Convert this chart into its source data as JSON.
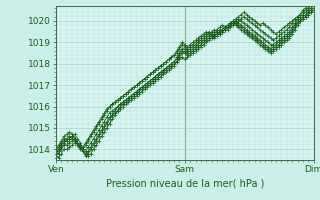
{
  "title": "Pression niveau de la mer( hPa )",
  "bg_color": "#cceee8",
  "plot_bg_color": "#d8f4f0",
  "grid_color_major": "#aacccc",
  "grid_color_minor": "#bbdddd",
  "line_color": "#1a5e1a",
  "tick_label_color": "#1a5e1a",
  "axis_label_color": "#1a5e1a",
  "ylim": [
    1013.5,
    1020.7
  ],
  "yticks": [
    1014,
    1015,
    1016,
    1017,
    1018,
    1019,
    1020
  ],
  "xtick_labels": [
    "Ven",
    "Sam",
    "Dim"
  ],
  "xtick_positions": [
    0,
    48,
    96
  ],
  "total_points": 97,
  "series": [
    [
      1013.7,
      1013.6,
      1013.8,
      1014.0,
      1014.0,
      1014.1,
      1014.2,
      1014.3,
      1014.3,
      1014.2,
      1014.0,
      1013.8,
      1013.7,
      1013.8,
      1014.0,
      1014.2,
      1014.4,
      1014.6,
      1014.8,
      1015.0,
      1015.2,
      1015.4,
      1015.6,
      1015.8,
      1016.0,
      1016.1,
      1016.2,
      1016.3,
      1016.4,
      1016.5,
      1016.6,
      1016.7,
      1016.8,
      1016.9,
      1017.0,
      1017.1,
      1017.2,
      1017.3,
      1017.4,
      1017.5,
      1017.6,
      1017.7,
      1017.8,
      1017.9,
      1018.0,
      1018.1,
      1018.2,
      1018.3,
      1018.2,
      1018.3,
      1018.4,
      1018.5,
      1018.6,
      1018.7,
      1018.8,
      1018.9,
      1019.0,
      1019.1,
      1019.2,
      1019.3,
      1019.4,
      1019.5,
      1019.6,
      1019.7,
      1019.8,
      1019.9,
      1020.0,
      1020.1,
      1020.2,
      1020.3,
      1020.4,
      1020.3,
      1020.2,
      1020.1,
      1020.0,
      1019.9,
      1019.8,
      1019.9,
      1019.8,
      1019.7,
      1019.6,
      1019.5,
      1019.4,
      1019.5,
      1019.6,
      1019.7,
      1019.8,
      1019.9,
      1020.0,
      1020.1,
      1020.2,
      1020.3,
      1020.5,
      1020.6,
      1020.7,
      1020.8,
      1020.9
    ],
    [
      1013.7,
      1013.8,
      1014.0,
      1014.2,
      1014.2,
      1014.3,
      1014.4,
      1014.5,
      1014.3,
      1014.1,
      1013.9,
      1013.7,
      1013.9,
      1014.1,
      1014.3,
      1014.5,
      1014.7,
      1014.9,
      1015.1,
      1015.3,
      1015.5,
      1015.6,
      1015.7,
      1015.8,
      1015.9,
      1016.0,
      1016.1,
      1016.2,
      1016.3,
      1016.4,
      1016.5,
      1016.6,
      1016.7,
      1016.8,
      1016.9,
      1017.0,
      1017.1,
      1017.2,
      1017.3,
      1017.4,
      1017.5,
      1017.6,
      1017.7,
      1017.8,
      1017.9,
      1018.1,
      1018.3,
      1018.5,
      1018.6,
      1018.5,
      1018.6,
      1018.7,
      1018.8,
      1018.9,
      1019.0,
      1019.1,
      1019.2,
      1019.3,
      1019.4,
      1019.5,
      1019.6,
      1019.7,
      1019.8,
      1019.7,
      1019.6,
      1019.7,
      1019.8,
      1019.9,
      1020.0,
      1020.1,
      1020.2,
      1020.1,
      1020.0,
      1019.9,
      1019.8,
      1019.7,
      1019.6,
      1019.5,
      1019.4,
      1019.3,
      1019.2,
      1019.1,
      1019.2,
      1019.3,
      1019.4,
      1019.5,
      1019.6,
      1019.7,
      1019.9,
      1020.1,
      1020.2,
      1020.3,
      1020.4,
      1020.5,
      1020.6,
      1020.7,
      1020.8
    ],
    [
      1013.8,
      1014.0,
      1014.2,
      1014.4,
      1014.4,
      1014.5,
      1014.6,
      1014.5,
      1014.3,
      1014.1,
      1013.9,
      1013.9,
      1014.1,
      1014.3,
      1014.5,
      1014.7,
      1014.9,
      1015.1,
      1015.3,
      1015.5,
      1015.7,
      1015.8,
      1015.9,
      1016.0,
      1016.1,
      1016.2,
      1016.3,
      1016.4,
      1016.5,
      1016.6,
      1016.7,
      1016.8,
      1016.9,
      1017.0,
      1017.1,
      1017.2,
      1017.3,
      1017.4,
      1017.5,
      1017.6,
      1017.7,
      1017.8,
      1017.9,
      1018.0,
      1018.1,
      1018.3,
      1018.5,
      1018.7,
      1018.7,
      1018.6,
      1018.7,
      1018.8,
      1018.9,
      1019.0,
      1019.1,
      1019.2,
      1019.3,
      1019.4,
      1019.5,
      1019.6,
      1019.5,
      1019.4,
      1019.5,
      1019.6,
      1019.7,
      1019.8,
      1019.9,
      1020.0,
      1020.1,
      1020.0,
      1019.9,
      1019.8,
      1019.7,
      1019.6,
      1019.5,
      1019.4,
      1019.3,
      1019.2,
      1019.1,
      1019.0,
      1018.9,
      1018.9,
      1019.0,
      1019.1,
      1019.2,
      1019.3,
      1019.4,
      1019.5,
      1019.7,
      1019.9,
      1020.1,
      1020.2,
      1020.3,
      1020.4,
      1020.5,
      1020.6,
      1020.7
    ],
    [
      1013.9,
      1014.1,
      1014.3,
      1014.5,
      1014.5,
      1014.6,
      1014.5,
      1014.4,
      1014.2,
      1014.0,
      1014.0,
      1014.2,
      1014.4,
      1014.6,
      1014.8,
      1015.0,
      1015.2,
      1015.4,
      1015.6,
      1015.8,
      1016.0,
      1016.1,
      1016.2,
      1016.3,
      1016.4,
      1016.5,
      1016.6,
      1016.7,
      1016.8,
      1016.9,
      1017.0,
      1017.1,
      1017.2,
      1017.3,
      1017.4,
      1017.5,
      1017.6,
      1017.7,
      1017.8,
      1017.9,
      1018.0,
      1018.1,
      1018.2,
      1018.3,
      1018.4,
      1018.5,
      1018.7,
      1018.9,
      1018.8,
      1018.7,
      1018.8,
      1018.9,
      1019.0,
      1019.1,
      1019.2,
      1019.3,
      1019.4,
      1019.5,
      1019.4,
      1019.3,
      1019.4,
      1019.5,
      1019.6,
      1019.7,
      1019.8,
      1019.9,
      1020.0,
      1019.9,
      1019.8,
      1019.7,
      1019.6,
      1019.5,
      1019.4,
      1019.3,
      1019.2,
      1019.1,
      1019.0,
      1018.9,
      1018.8,
      1018.7,
      1018.6,
      1018.7,
      1018.8,
      1018.9,
      1019.0,
      1019.1,
      1019.2,
      1019.3,
      1019.5,
      1019.7,
      1019.9,
      1020.0,
      1020.1,
      1020.2,
      1020.3,
      1020.4,
      1020.5
    ],
    [
      1014.0,
      1014.2,
      1014.4,
      1014.6,
      1014.7,
      1014.8,
      1014.7,
      1014.5,
      1014.3,
      1014.1,
      1014.1,
      1014.3,
      1014.5,
      1014.7,
      1014.9,
      1015.1,
      1015.3,
      1015.5,
      1015.7,
      1015.9,
      1016.0,
      1016.1,
      1016.2,
      1016.3,
      1016.4,
      1016.5,
      1016.6,
      1016.7,
      1016.8,
      1016.9,
      1017.0,
      1017.1,
      1017.2,
      1017.3,
      1017.4,
      1017.5,
      1017.6,
      1017.7,
      1017.8,
      1017.9,
      1018.0,
      1018.1,
      1018.2,
      1018.3,
      1018.4,
      1018.6,
      1018.8,
      1019.0,
      1018.9,
      1018.8,
      1018.9,
      1019.0,
      1019.1,
      1019.2,
      1019.3,
      1019.4,
      1019.5,
      1019.4,
      1019.3,
      1019.2,
      1019.3,
      1019.4,
      1019.5,
      1019.6,
      1019.7,
      1019.8,
      1019.9,
      1019.8,
      1019.7,
      1019.6,
      1019.5,
      1019.4,
      1019.3,
      1019.2,
      1019.1,
      1019.0,
      1018.9,
      1018.8,
      1018.7,
      1018.6,
      1018.5,
      1018.6,
      1018.7,
      1018.8,
      1018.9,
      1019.0,
      1019.1,
      1019.2,
      1019.4,
      1019.6,
      1019.8,
      1020.0,
      1020.1,
      1020.2,
      1020.3,
      1020.4,
      1020.5
    ],
    [
      1013.7,
      1013.9,
      1014.1,
      1014.3,
      1014.4,
      1014.5,
      1014.6,
      1014.7,
      1014.5,
      1014.3,
      1014.0,
      1013.8,
      1013.8,
      1014.0,
      1014.2,
      1014.4,
      1014.6,
      1014.8,
      1015.0,
      1015.2,
      1015.4,
      1015.6,
      1015.8,
      1016.0,
      1016.1,
      1016.2,
      1016.3,
      1016.4,
      1016.5,
      1016.6,
      1016.7,
      1016.8,
      1016.9,
      1017.0,
      1017.1,
      1017.2,
      1017.3,
      1017.4,
      1017.5,
      1017.6,
      1017.7,
      1017.8,
      1017.9,
      1018.0,
      1018.1,
      1018.2,
      1018.4,
      1018.6,
      1018.5,
      1018.4,
      1018.5,
      1018.6,
      1018.7,
      1018.8,
      1018.9,
      1019.0,
      1019.1,
      1019.2,
      1019.3,
      1019.4,
      1019.5,
      1019.6,
      1019.5,
      1019.6,
      1019.7,
      1019.8,
      1019.9,
      1020.0,
      1019.9,
      1019.8,
      1019.7,
      1019.6,
      1019.5,
      1019.4,
      1019.3,
      1019.2,
      1019.1,
      1019.0,
      1018.9,
      1018.8,
      1018.7,
      1018.8,
      1018.9,
      1019.0,
      1019.1,
      1019.2,
      1019.3,
      1019.4,
      1019.6,
      1019.8,
      1020.0,
      1020.1,
      1020.2,
      1020.3,
      1020.4,
      1020.5,
      1020.6
    ]
  ]
}
